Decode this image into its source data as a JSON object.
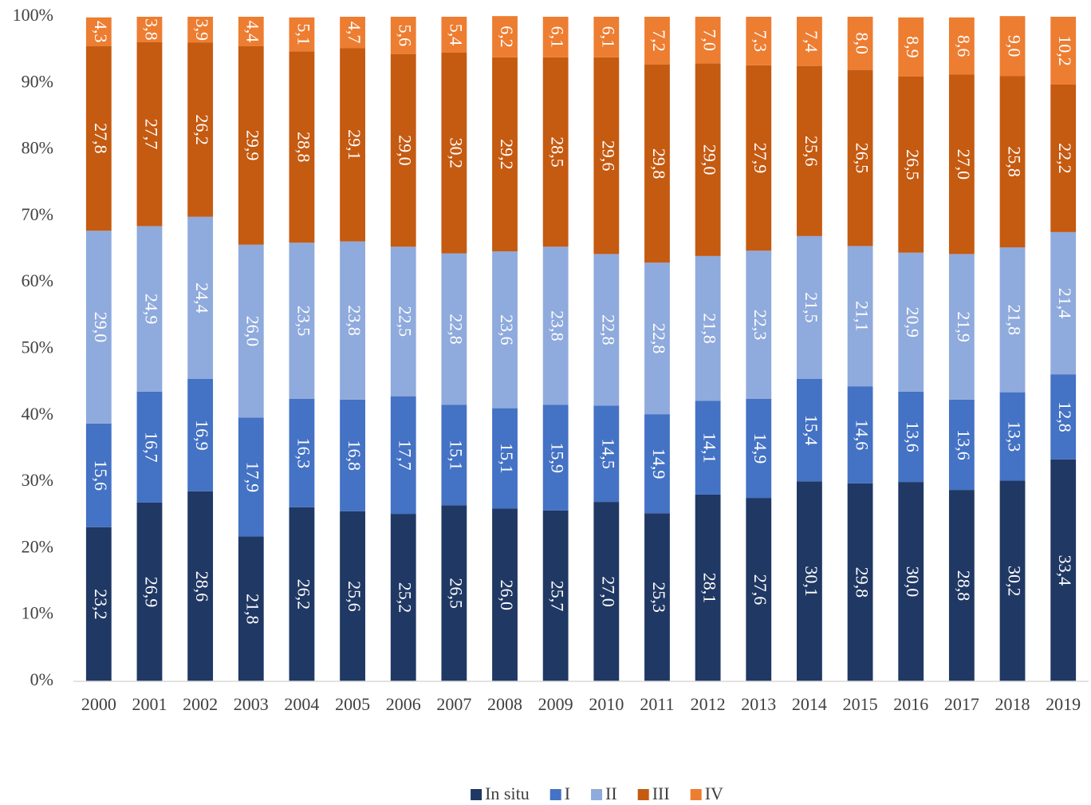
{
  "chart_data": {
    "type": "stacked-bar",
    "categories": [
      "2000",
      "2001",
      "2002",
      "2003",
      "2004",
      "2005",
      "2006",
      "2007",
      "2008",
      "2009",
      "2010",
      "2011",
      "2012",
      "2013",
      "2014",
      "2015",
      "2016",
      "2017",
      "2018",
      "2019"
    ],
    "ylim": [
      0,
      100
    ],
    "yticks": [
      {
        "value": 0,
        "label": "0%"
      },
      {
        "value": 10,
        "label": "10%"
      },
      {
        "value": 20,
        "label": "20%"
      },
      {
        "value": 30,
        "label": "30%"
      },
      {
        "value": 40,
        "label": "40%"
      },
      {
        "value": 50,
        "label": "50%"
      },
      {
        "value": 60,
        "label": "60%"
      },
      {
        "value": 70,
        "label": "70%"
      },
      {
        "value": 80,
        "label": "80%"
      },
      {
        "value": 90,
        "label": "90%"
      },
      {
        "value": 100,
        "label": "100%"
      }
    ],
    "grid": false,
    "legend": "bottom",
    "series": [
      {
        "name": "In situ",
        "color": "#203864",
        "values": [
          23.2,
          26.9,
          28.6,
          21.8,
          26.2,
          25.6,
          25.2,
          26.5,
          26.0,
          25.7,
          27.0,
          25.3,
          28.1,
          27.6,
          30.1,
          29.8,
          30.0,
          28.8,
          30.2,
          33.4
        ],
        "value_labels": [
          "23,2",
          "26,9",
          "28,6",
          "21,8",
          "26,2",
          "25,6",
          "25,2",
          "26,5",
          "26,0",
          "25,7",
          "27,0",
          "25,3",
          "28,1",
          "27,6",
          "30,1",
          "29,8",
          "30,0",
          "28,8",
          "30,2",
          "33,4"
        ]
      },
      {
        "name": "I",
        "color": "#4472c4",
        "values": [
          15.6,
          16.7,
          16.9,
          17.9,
          16.3,
          16.8,
          17.7,
          15.1,
          15.1,
          15.9,
          14.5,
          14.9,
          14.1,
          14.9,
          15.4,
          14.6,
          13.6,
          13.6,
          13.3,
          12.8
        ],
        "value_labels": [
          "15,6",
          "16,7",
          "16,9",
          "17,9",
          "16,3",
          "16,8",
          "17,7",
          "15,1",
          "15,1",
          "15,9",
          "14,5",
          "14,9",
          "14,1",
          "14,9",
          "15,4",
          "14,6",
          "13,6",
          "13,6",
          "13,3",
          "12,8"
        ]
      },
      {
        "name": "II",
        "color": "#8faadc",
        "values": [
          29.0,
          24.9,
          24.4,
          26.0,
          23.5,
          23.8,
          22.5,
          22.8,
          23.6,
          23.8,
          22.8,
          22.8,
          21.8,
          22.3,
          21.5,
          21.1,
          20.9,
          21.9,
          21.8,
          21.4
        ],
        "value_labels": [
          "29,0",
          "24,9",
          "24,4",
          "26,0",
          "23,5",
          "23,8",
          "22,5",
          "22,8",
          "23,6",
          "23,8",
          "22,8",
          "22,8",
          "21,8",
          "22,3",
          "21,5",
          "21,1",
          "20,9",
          "21,9",
          "21,8",
          "21,4"
        ]
      },
      {
        "name": "III",
        "color": "#c55a11",
        "values": [
          27.8,
          27.7,
          26.2,
          29.9,
          28.8,
          29.1,
          29.0,
          30.2,
          29.2,
          28.5,
          29.6,
          29.8,
          29.0,
          27.9,
          25.6,
          26.5,
          26.5,
          27.0,
          25.8,
          22.2
        ],
        "value_labels": [
          "27,8",
          "27,7",
          "26,2",
          "29,9",
          "28,8",
          "29,1",
          "29,0",
          "30,2",
          "29,2",
          "28,5",
          "29,6",
          "29,8",
          "29,0",
          "27,9",
          "25,6",
          "26,5",
          "26,5",
          "27,0",
          "25,8",
          "22,2"
        ]
      },
      {
        "name": "IV",
        "color": "#ed7d31",
        "values": [
          4.3,
          3.8,
          3.9,
          4.4,
          5.1,
          4.7,
          5.6,
          5.4,
          6.2,
          6.1,
          6.1,
          7.2,
          7.0,
          7.3,
          7.4,
          8.0,
          8.9,
          8.6,
          9.0,
          10.2
        ],
        "value_labels": [
          "4,3",
          "3,8",
          "3,9",
          "4,4",
          "5,1",
          "4,7",
          "5,6",
          "5,4",
          "6,2",
          "6,1",
          "6,1",
          "7,2",
          "7,0",
          "7,3",
          "7,4",
          "8,0",
          "8,9",
          "8,6",
          "9,0",
          "10,2"
        ]
      }
    ]
  }
}
